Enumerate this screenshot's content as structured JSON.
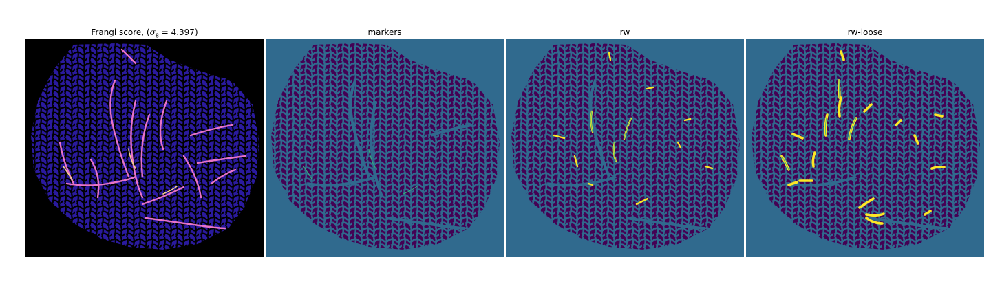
{
  "panels": [
    {
      "title_prefix": "Frangi score, (",
      "title_math": "σ",
      "title_sub": "8",
      "title_suffix": " = 4.397)",
      "colormap": "magma"
    },
    {
      "title": "markers",
      "colormap": "viridis"
    },
    {
      "title": "rw",
      "colormap": "viridis"
    },
    {
      "title": "rw-loose",
      "colormap": "viridis"
    }
  ],
  "colors": {
    "figure_bg": "#ffffff",
    "frangi_bg": "#000000",
    "frangi_tissue": "#2a1a9e",
    "frangi_ridge": "#e873c8",
    "frangi_ridge_hot": "#f5d08a",
    "label_background": "#306a8e",
    "label_tissue": "#440154",
    "label_vessel": "#fde725",
    "label_edge": "#35b779"
  }
}
